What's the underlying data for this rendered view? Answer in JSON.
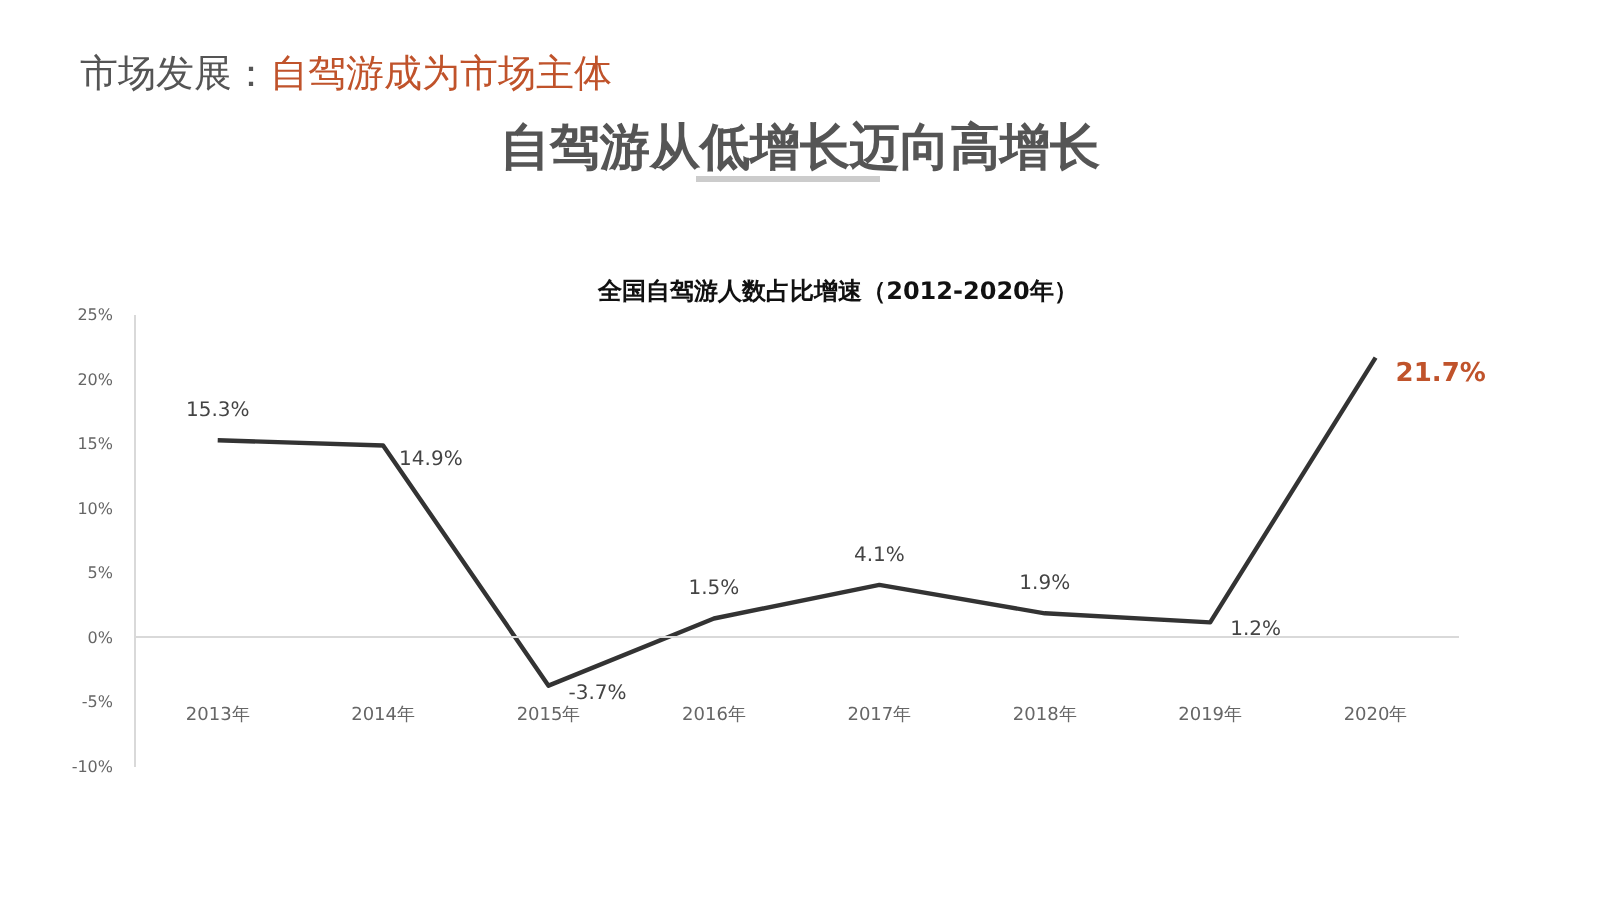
{
  "chart_data": {
    "type": "line",
    "annotations": [
      "市场发展：",
      "自驾游成为市场主体",
      "自驾游从低增长迈向高增长",
      {
        "text": "21.7%",
        "x": "2020年",
        "y": 21.7
      }
    ],
    "title": "全国自驾游人数占比增速（2012-2020年）",
    "categories": [
      "2013年",
      "2014年",
      "2015年",
      "2016年",
      "2017年",
      "2018年",
      "2019年",
      "2020年"
    ],
    "series": [
      {
        "color": "#333333",
        "values": [
          15.3,
          14.9,
          -3.7,
          1.5,
          4.1,
          1.9,
          1.2,
          21.7
        ],
        "value_labels": [
          "15.3%",
          "14.9%",
          "-3.7%",
          "1.5%",
          "4.1%",
          "1.9%",
          "1.2%",
          null
        ]
      }
    ],
    "ylim": [
      -10,
      25
    ],
    "yticks": [
      {
        "value": -10,
        "label": "-10%"
      },
      {
        "value": -5,
        "label": "-5%"
      },
      {
        "value": 0,
        "label": "0%"
      },
      {
        "value": 5,
        "label": "5%"
      },
      {
        "value": 10,
        "label": "10%"
      },
      {
        "value": 15,
        "label": "15%"
      },
      {
        "value": 20,
        "label": "20%"
      },
      {
        "value": 25,
        "label": "25%"
      }
    ],
    "marker": "none",
    "line_style": "solid"
  }
}
